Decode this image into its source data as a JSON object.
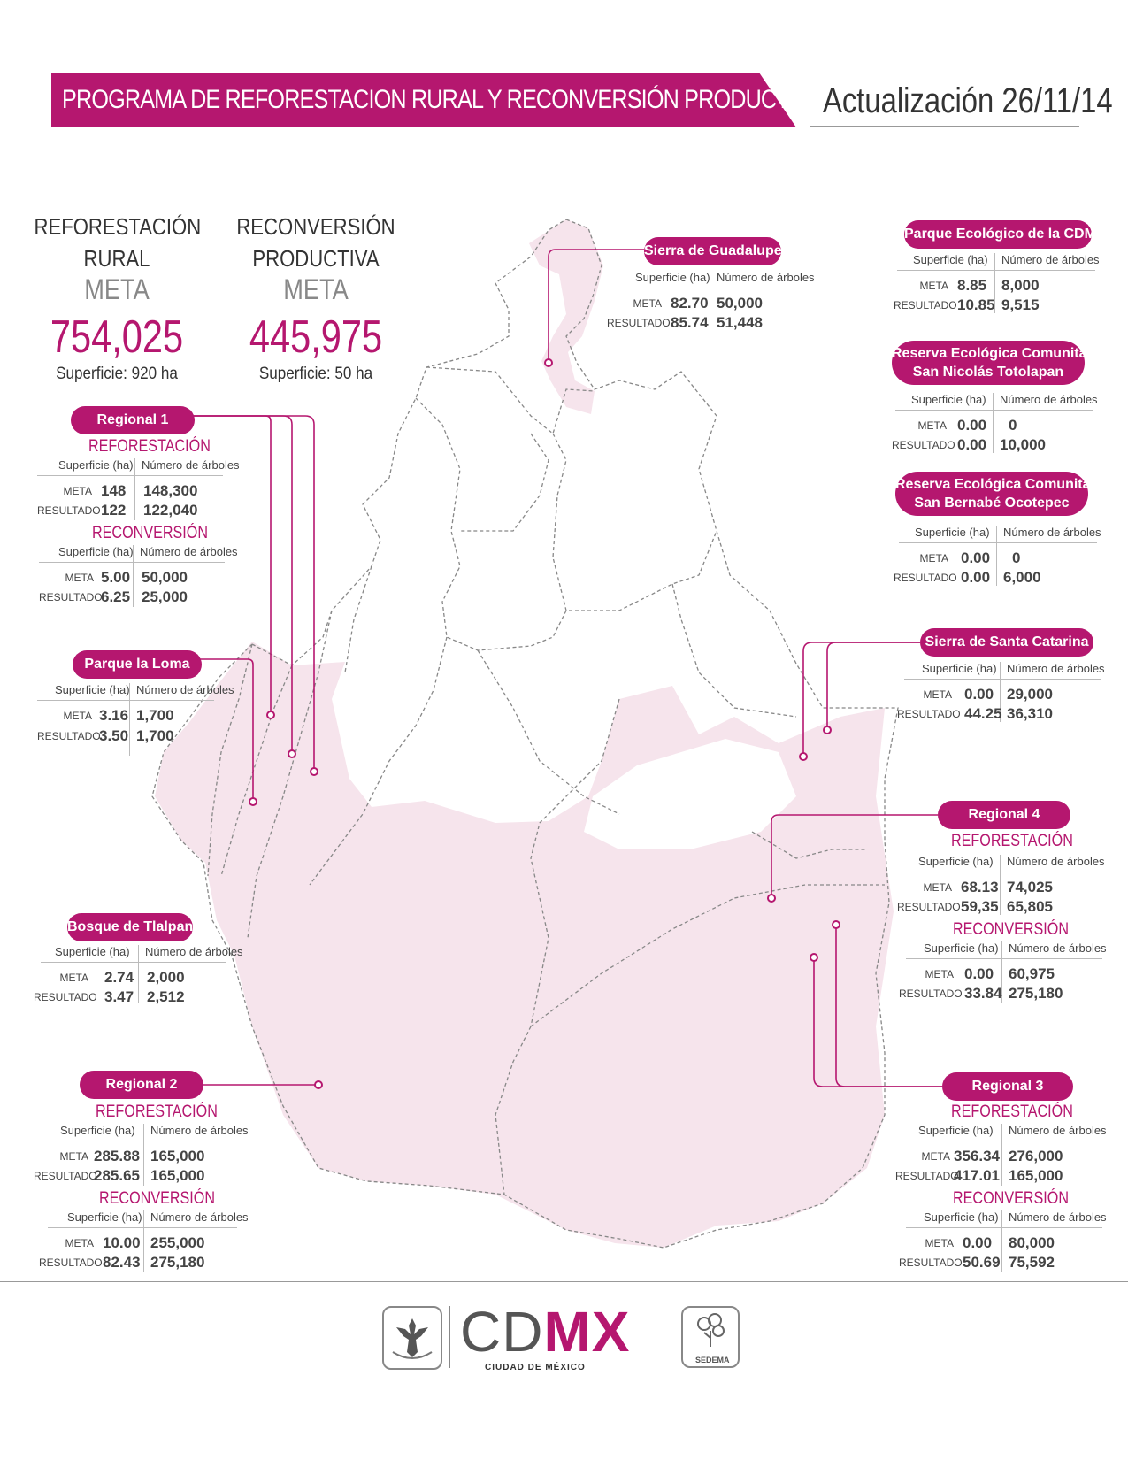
{
  "header": {
    "title": "PROGRAMA DE REFORESTACION RURAL Y RECONVERSIÓN PRODUCTIVA",
    "updated": "Actualización 26/11/14"
  },
  "summary": {
    "reforestacion": {
      "title1": "REFORESTACIÓN",
      "title2": "RURAL",
      "meta": "META",
      "value": "754,025",
      "surface": "Superficie: 920 ha"
    },
    "reconversion": {
      "title1": "RECONVERSIÓN",
      "title2": "PRODUCTIVA",
      "meta": "META",
      "value": "445,975",
      "surface": "Superficie: 50 ha"
    }
  },
  "labels": {
    "sup": "Superficie (ha)",
    "arb": "Número de árboles",
    "meta": "META",
    "resultado": "RESULTADO",
    "reforestacion": "REFORESTACIÓN",
    "reconversion": "RECONVERSIÓN"
  },
  "regions": {
    "regional1": {
      "name": "Regional 1",
      "ref": {
        "meta_sup": "148",
        "meta_arb": "148,300",
        "res_sup": "122",
        "res_arb": "122,040"
      },
      "rec": {
        "meta_sup": "5.00",
        "meta_arb": "50,000",
        "res_sup": "6.25",
        "res_arb": "25,000"
      }
    },
    "parque_loma": {
      "name": "Parque la Loma",
      "d": {
        "meta_sup": "3.16",
        "meta_arb": "1,700",
        "res_sup": "3.50",
        "res_arb": "1,700"
      }
    },
    "bosque_tlalpan": {
      "name": "Bosque de Tlalpan",
      "d": {
        "meta_sup": "2.74",
        "meta_arb": "2,000",
        "res_sup": "3.47",
        "res_arb": "2,512"
      }
    },
    "regional2": {
      "name": "Regional 2",
      "ref": {
        "meta_sup": "285.88",
        "meta_arb": "165,000",
        "res_sup": "285.65",
        "res_arb": "165,000"
      },
      "rec": {
        "meta_sup": "10.00",
        "meta_arb": "255,000",
        "res_sup": "82.43",
        "res_arb": "275,180"
      }
    },
    "sierra_guadalupe": {
      "name": "Sierra de Guadalupe",
      "d": {
        "meta_sup": "82.70",
        "meta_arb": "50,000",
        "res_sup": "85.74",
        "res_arb": "51,448"
      }
    },
    "parque_cdmx": {
      "name": "Parque Ecológico de la CDMX",
      "d": {
        "meta_sup": "8.85",
        "meta_arb": "8,000",
        "res_sup": "10.85",
        "res_arb": "9,515"
      }
    },
    "totolapan": {
      "name1": "Reserva Ecológica Comunitaria",
      "name2": "San Nicolás Totolapan",
      "d": {
        "meta_sup": "0.00",
        "meta_arb": "0",
        "res_sup": "0.00",
        "res_arb": "10,000"
      }
    },
    "ocotepec": {
      "name1": "Reserva Ecológica Comunitaria",
      "name2": "San Bernabé Ocotepec",
      "d": {
        "meta_sup": "0.00",
        "meta_arb": "0",
        "res_sup": "0.00",
        "res_arb": "6,000"
      }
    },
    "santa_catarina": {
      "name": "Sierra de Santa Catarina",
      "d": {
        "meta_sup": "0.00",
        "meta_arb": "29,000",
        "res_sup": "44.25",
        "res_arb": "36,310"
      }
    },
    "regional4": {
      "name": "Regional 4",
      "ref": {
        "meta_sup": "68.13",
        "meta_arb": "74,025",
        "res_sup": "59,35",
        "res_arb": "65,805"
      },
      "rec": {
        "meta_sup": "0.00",
        "meta_arb": "60,975",
        "res_sup": "33.84",
        "res_arb": "275,180"
      }
    },
    "regional3": {
      "name": "Regional 3",
      "ref": {
        "meta_sup": "356.34",
        "meta_arb": "276,000",
        "res_sup": "417.01",
        "res_arb": "165,000"
      },
      "rec": {
        "meta_sup": "0.00",
        "meta_arb": "80,000",
        "res_sup": "50.69",
        "res_arb": "75,592"
      }
    }
  },
  "footer": {
    "brand_a": "CD",
    "brand_b": "MX",
    "brand_sub": "CIUDAD DE MÉXICO",
    "sedema": "SEDEMA"
  },
  "colors": {
    "accent": "#b5176f",
    "map_fill": "#f6e4ec",
    "map_border": "#888888"
  }
}
